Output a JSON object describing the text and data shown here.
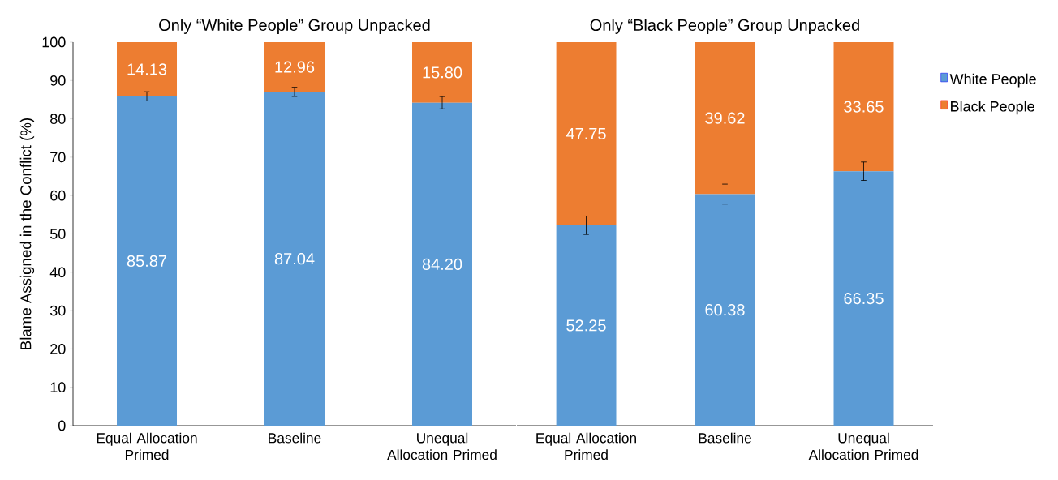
{
  "chart_data": [
    {
      "type": "bar",
      "title": "Only “White People” Group Unpacked",
      "ylabel": "Blame Assigned in the Conflict (%)",
      "categories": [
        "Equal Allocation Primed",
        "Baseline",
        "Unequal Allocation Primed"
      ],
      "stacked": true,
      "ylim": [
        0,
        100
      ],
      "yticks": [
        0,
        10,
        20,
        30,
        40,
        50,
        60,
        70,
        80,
        90,
        100
      ],
      "grid": false,
      "legend": false,
      "series": [
        {
          "color": "#5b9bd5",
          "values": [
            85.87,
            87.04,
            84.2
          ],
          "value_labels": [
            "85.87",
            "87.04",
            "84.20"
          ],
          "errors": [
            1.2,
            1.2,
            1.6
          ]
        },
        {
          "color": "#ed7d31",
          "values": [
            14.13,
            12.96,
            15.8
          ],
          "value_labels": [
            "14.13",
            "12.96",
            "15.80"
          ]
        }
      ]
    },
    {
      "type": "bar",
      "title": "Only “Black People” Group Unpacked",
      "categories": [
        "Equal Allocation Primed",
        "Baseline",
        "Unequal Allocation Primed"
      ],
      "stacked": true,
      "ylim": [
        0,
        100
      ],
      "yticks": [
        0,
        10,
        20,
        30,
        40,
        50,
        60,
        70,
        80,
        90,
        100
      ],
      "grid": false,
      "legend": "right",
      "tick_labels": "x",
      "series": [
        {
          "name": "White People",
          "color": "#5b9bd5",
          "values": [
            52.25,
            60.38,
            66.35
          ],
          "value_labels": [
            "52.25",
            "60.38",
            "66.35"
          ],
          "errors": [
            2.4,
            2.6,
            2.4
          ]
        },
        {
          "name": "Black People",
          "color": "#ed7d31",
          "values": [
            47.75,
            39.62,
            33.65
          ],
          "value_labels": [
            "47.75",
            "39.62",
            "33.65"
          ]
        }
      ]
    }
  ]
}
